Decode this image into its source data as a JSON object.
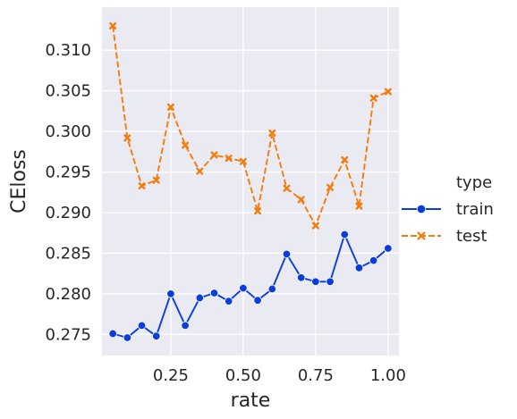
{
  "chart_data": {
    "type": "line",
    "xlabel": "rate",
    "ylabel": "CEloss",
    "xlim": [
      0.0125,
      1.0375
    ],
    "ylim": [
      0.2724,
      0.3153
    ],
    "x_ticks": [
      0.25,
      0.5,
      0.75,
      1.0
    ],
    "x_tick_labels": [
      "0.25",
      "0.50",
      "0.75",
      "1.00"
    ],
    "y_ticks": [
      0.275,
      0.28,
      0.285,
      0.29,
      0.295,
      0.3,
      0.305,
      0.31
    ],
    "y_tick_labels": [
      "0.275",
      "0.280",
      "0.285",
      "0.290",
      "0.295",
      "0.300",
      "0.305",
      "0.310"
    ],
    "grid": true,
    "legend": {
      "title": "type",
      "placement": "right"
    },
    "x": [
      0.05,
      0.1,
      0.15,
      0.2,
      0.25,
      0.3,
      0.35,
      0.4,
      0.45,
      0.5,
      0.55,
      0.6,
      0.65,
      0.7,
      0.75,
      0.8,
      0.85,
      0.9,
      0.95,
      1.0
    ],
    "series": [
      {
        "name": "train",
        "color": "#0a3ddd",
        "line_style": "solid",
        "marker": "circle",
        "values": [
          0.2751,
          0.2746,
          0.2761,
          0.2748,
          0.28,
          0.2761,
          0.2795,
          0.2801,
          0.2791,
          0.2807,
          0.2792,
          0.2806,
          0.2849,
          0.282,
          0.2815,
          0.2815,
          0.2873,
          0.2832,
          0.2841,
          0.2856
        ]
      },
      {
        "name": "test",
        "color": "#f47c0e",
        "line_style": "dashed",
        "marker": "x",
        "values": [
          0.313,
          0.2992,
          0.2933,
          0.294,
          0.303,
          0.2983,
          0.2951,
          0.2971,
          0.2967,
          0.2963,
          0.2902,
          0.2998,
          0.293,
          0.2916,
          0.2884,
          0.2931,
          0.2965,
          0.2908,
          0.3041,
          0.3049
        ]
      }
    ]
  }
}
